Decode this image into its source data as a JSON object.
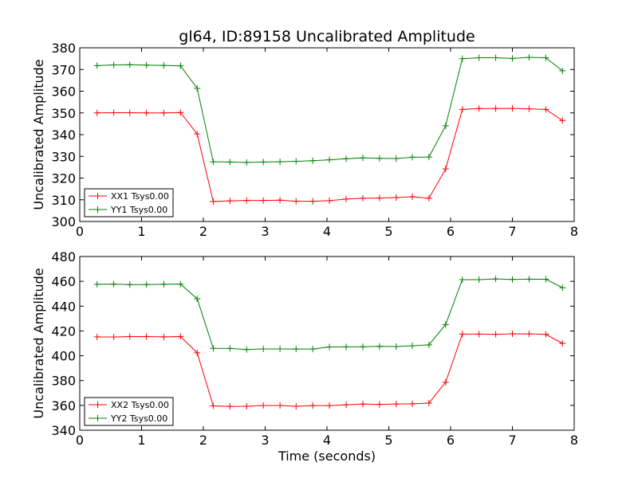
{
  "chart_data": [
    {
      "type": "line",
      "title": "gl64, ID:89158 Uncalibrated Amplitude",
      "xlabel": "",
      "ylabel": "Uncalibrated Amplitude",
      "xlim": [
        0,
        8
      ],
      "ylim": [
        300,
        380
      ],
      "xticks": [
        "0",
        "1",
        "2",
        "3",
        "4",
        "5",
        "6",
        "7",
        "8"
      ],
      "yticks": [
        "300",
        "310",
        "320",
        "330",
        "340",
        "350",
        "360",
        "370",
        "380"
      ],
      "legend_position": "lower-left",
      "series": [
        {
          "name": "XX1 Tsys0.00",
          "color": "#ff0000",
          "x": [
            0.28,
            0.55,
            0.81,
            1.08,
            1.36,
            1.63,
            1.9,
            2.16,
            2.43,
            2.7,
            2.97,
            3.24,
            3.5,
            3.77,
            4.04,
            4.31,
            4.58,
            4.85,
            5.12,
            5.38,
            5.65,
            5.92,
            6.19,
            6.46,
            6.73,
            7.0,
            7.27,
            7.54,
            7.81
          ],
          "y": [
            350.0,
            350.1,
            350.1,
            350.0,
            350.0,
            350.2,
            340.3,
            309.2,
            309.5,
            309.7,
            309.7,
            309.8,
            309.3,
            309.3,
            309.6,
            310.3,
            310.7,
            310.8,
            311.0,
            311.4,
            310.7,
            324.2,
            351.6,
            352.0,
            352.0,
            352.1,
            351.9,
            351.6,
            346.5
          ]
        },
        {
          "name": "YY1 Tsys0.00",
          "color": "#008000",
          "x": [
            0.28,
            0.55,
            0.81,
            1.08,
            1.36,
            1.63,
            1.9,
            2.16,
            2.43,
            2.7,
            2.97,
            3.24,
            3.5,
            3.77,
            4.04,
            4.31,
            4.58,
            4.85,
            5.12,
            5.38,
            5.65,
            5.92,
            6.19,
            6.46,
            6.73,
            7.0,
            7.27,
            7.54,
            7.81
          ],
          "y": [
            371.8,
            372.1,
            372.2,
            372.0,
            371.9,
            371.7,
            361.3,
            327.5,
            327.4,
            327.2,
            327.4,
            327.5,
            327.7,
            328.0,
            328.4,
            328.9,
            329.3,
            329.1,
            329.0,
            329.6,
            329.7,
            344.1,
            375.0,
            375.4,
            375.4,
            375.1,
            375.6,
            375.4,
            369.4
          ]
        }
      ]
    },
    {
      "type": "line",
      "title": "",
      "xlabel": "Time (seconds)",
      "ylabel": "Uncalibrated Amplitude",
      "xlim": [
        0,
        8
      ],
      "ylim": [
        340,
        480
      ],
      "xticks": [
        "0",
        "1",
        "2",
        "3",
        "4",
        "5",
        "6",
        "7",
        "8"
      ],
      "yticks": [
        "340",
        "360",
        "380",
        "400",
        "420",
        "440",
        "460",
        "480"
      ],
      "legend_position": "lower-left",
      "series": [
        {
          "name": "XX2 Tsys0.00",
          "color": "#ff0000",
          "x": [
            0.28,
            0.55,
            0.81,
            1.08,
            1.36,
            1.63,
            1.9,
            2.16,
            2.43,
            2.7,
            2.97,
            3.24,
            3.5,
            3.77,
            4.04,
            4.31,
            4.58,
            4.85,
            5.12,
            5.38,
            5.65,
            5.92,
            6.19,
            6.46,
            6.73,
            7.0,
            7.27,
            7.54,
            7.81
          ],
          "y": [
            415.2,
            415.1,
            415.5,
            415.5,
            415.2,
            415.5,
            402.4,
            359.6,
            359.2,
            359.3,
            359.9,
            359.9,
            359.3,
            359.8,
            359.8,
            360.5,
            361.1,
            360.8,
            361.1,
            361.3,
            361.8,
            378.7,
            417.5,
            417.5,
            417.3,
            417.7,
            417.6,
            417.3,
            410.0
          ]
        },
        {
          "name": "YY2 Tsys0.00",
          "color": "#008000",
          "x": [
            0.28,
            0.55,
            0.81,
            1.08,
            1.36,
            1.63,
            1.9,
            2.16,
            2.43,
            2.7,
            2.97,
            3.24,
            3.5,
            3.77,
            4.04,
            4.31,
            4.58,
            4.85,
            5.12,
            5.38,
            5.65,
            5.92,
            6.19,
            6.46,
            6.73,
            7.0,
            7.27,
            7.54,
            7.81
          ],
          "y": [
            457.6,
            457.8,
            457.4,
            457.4,
            457.7,
            457.8,
            446.0,
            406.0,
            405.9,
            405.0,
            405.5,
            405.5,
            405.4,
            405.4,
            407.1,
            407.2,
            407.3,
            407.6,
            407.4,
            408.1,
            408.8,
            425.2,
            461.4,
            461.4,
            461.9,
            461.5,
            461.8,
            461.7,
            454.9
          ]
        }
      ]
    }
  ]
}
